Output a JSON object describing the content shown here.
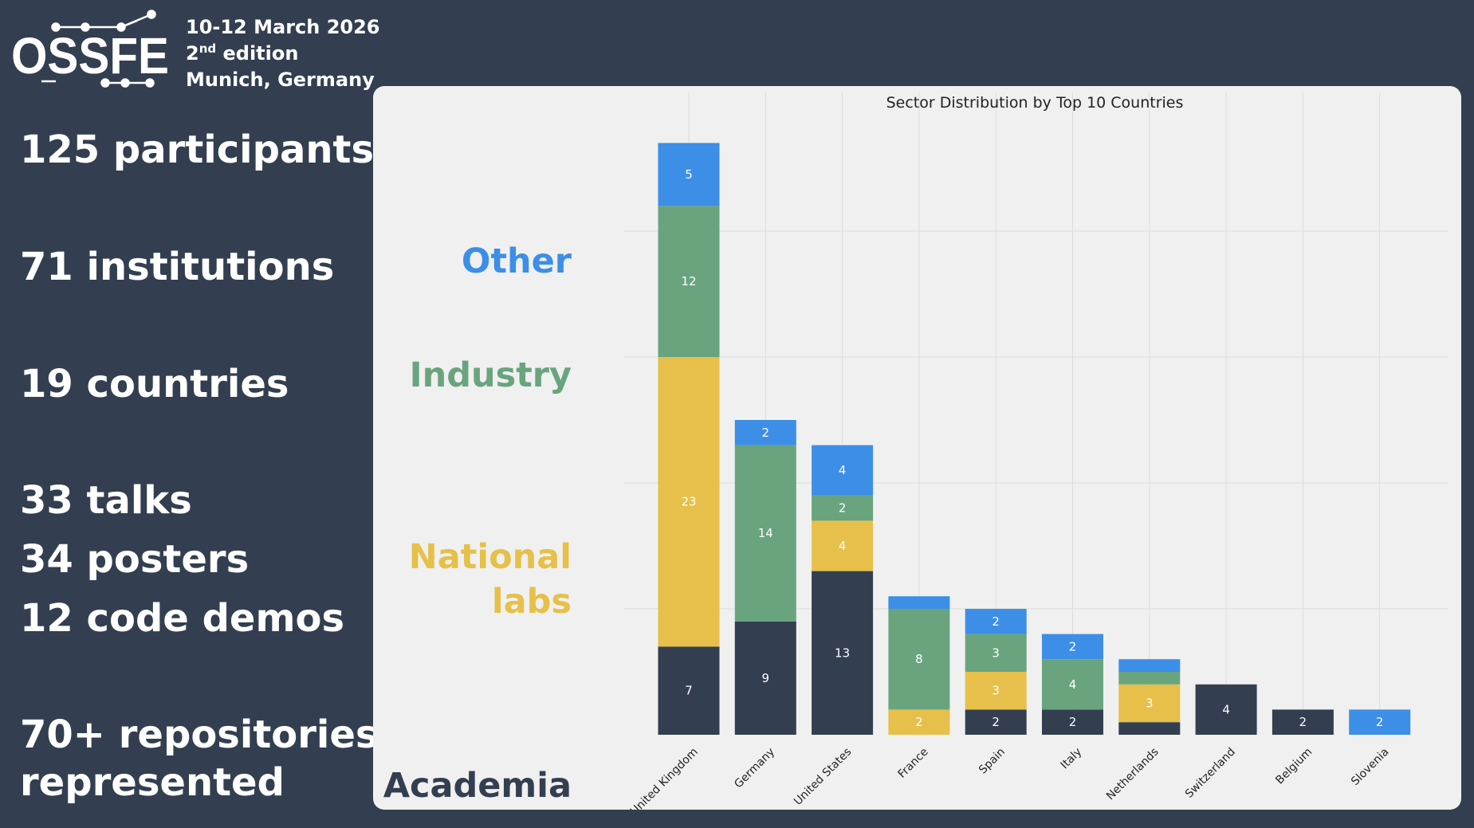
{
  "logo": {
    "text": "OSSFE"
  },
  "event": {
    "dates": "10-12 March 2026",
    "edition_number": "2",
    "edition_suffix": "nd",
    "edition_word": " edition",
    "location": "Munich, Germany"
  },
  "stats": {
    "participants": "125 participants",
    "institutions": "71 institutions",
    "countries": "19 countries",
    "talks": "33 talks",
    "posters": "34 posters",
    "code_demos": "12 code demos",
    "repos_line1": "70+ repositories",
    "repos_line2": "represented"
  },
  "sector_labels": {
    "other": "Other",
    "industry": "Industry",
    "natlabs_line1": "National",
    "natlabs_line2": "labs",
    "academia": "Academia"
  },
  "colors": {
    "background": "#333f50",
    "panel": "#f0f0f0",
    "academia": "#333f50",
    "national_labs": "#e6c04a",
    "industry": "#69a47f",
    "other": "#3d8ee6"
  },
  "chart_data": {
    "type": "bar",
    "stacked": true,
    "title": "Sector Distribution by Top 10 Countries",
    "xlabel": "",
    "ylabel": "",
    "ylim": [
      0,
      51
    ],
    "grid": true,
    "categories": [
      "United Kingdom",
      "Germany",
      "United States",
      "France",
      "Spain",
      "Italy",
      "Netherlands",
      "Switzerland",
      "Belgium",
      "Slovenia"
    ],
    "series": [
      {
        "name": "Academia",
        "values": [
          7,
          9,
          13,
          0,
          2,
          2,
          1,
          4,
          2,
          0
        ]
      },
      {
        "name": "National labs",
        "values": [
          23,
          0,
          4,
          2,
          3,
          0,
          3,
          0,
          0,
          0
        ]
      },
      {
        "name": "Industry",
        "values": [
          12,
          14,
          2,
          8,
          3,
          4,
          1,
          0,
          0,
          0
        ]
      },
      {
        "name": "Other",
        "values": [
          5,
          2,
          4,
          1,
          2,
          2,
          1,
          0,
          0,
          2
        ]
      }
    ]
  }
}
